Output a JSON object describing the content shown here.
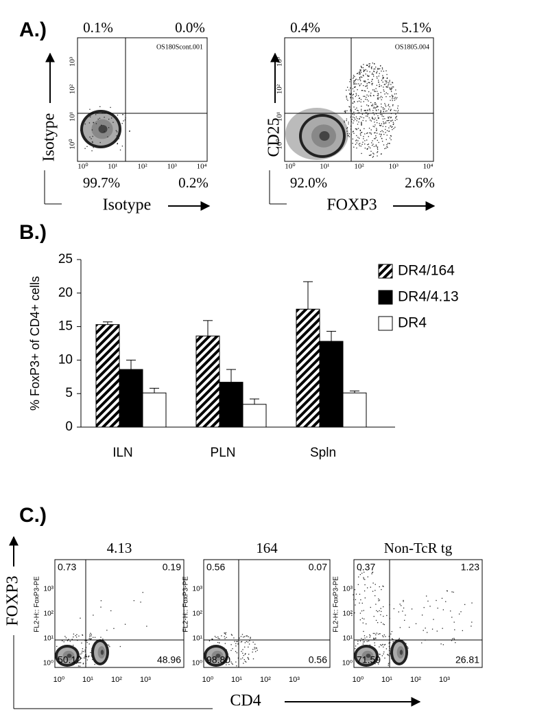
{
  "panel_a": {
    "label": "A.)",
    "x_ticks": [
      "10⁰",
      "10¹",
      "10²",
      "10³",
      "10⁴"
    ],
    "y_ticks": [
      "10⁰",
      "10¹",
      "10²",
      "10³"
    ],
    "plots": [
      {
        "file": "OS180Scont.001",
        "y_label": "Isotype",
        "x_label": "Isotype",
        "quadrants": {
          "upper_left": "0.1%",
          "upper_right": "0.0%",
          "lower_left": "99.7%",
          "lower_right": "0.2%"
        }
      },
      {
        "file": "OS1805.004",
        "y_label": "CD25",
        "x_label": "FOXP3",
        "quadrants": {
          "upper_left": "0.4%",
          "upper_right": "5.1%",
          "lower_left": "92.0%",
          "lower_right": "2.6%"
        }
      }
    ]
  },
  "chart_data": {
    "type": "bar",
    "panel_label": "B.)",
    "y_label": "% FoxP3+ of CD4+ cells",
    "categories": [
      "ILN",
      "PLN",
      "Spln"
    ],
    "series": [
      {
        "name": "DR4/164",
        "color": "#000000",
        "pattern": "hatch",
        "values": [
          15.3,
          13.6,
          17.6
        ],
        "errors": [
          0.4,
          2.3,
          4.1
        ]
      },
      {
        "name": "DR4/4.13",
        "color": "#000000",
        "values": [
          8.6,
          6.7,
          12.8
        ],
        "errors": [
          1.4,
          1.9,
          1.5
        ]
      },
      {
        "name": "DR4",
        "color": "#ffffff",
        "values": [
          5.1,
          3.4,
          5.1
        ],
        "errors": [
          0.7,
          0.8,
          0.3
        ]
      }
    ],
    "ylim": [
      0,
      25
    ],
    "yticks": [
      0,
      5,
      10,
      15,
      20,
      25
    ],
    "legend": "upper right"
  },
  "panel_c": {
    "label": "C.)",
    "y_label": "FOXP3",
    "x_label": "CD4",
    "axis_name": "FL2-H:: FoxP3-PE",
    "x_ticks": [
      "10⁰",
      "10¹",
      "10²",
      "10³"
    ],
    "y_ticks": [
      "10⁰",
      "10¹",
      "10²",
      "10³"
    ],
    "plots": [
      {
        "title": "4.13",
        "quadrants": {
          "upper_left": "0.73",
          "upper_right": "0.19",
          "lower_left": "50.12",
          "lower_right": "48.96"
        }
      },
      {
        "title": "164",
        "quadrants": {
          "upper_left": "0.56",
          "upper_right": "0.07",
          "lower_left": "98.80",
          "lower_right": "0.56"
        }
      },
      {
        "title": "Non-TcR tg",
        "quadrants": {
          "upper_left": "0.37",
          "upper_right": "1.23",
          "lower_left": "71.59",
          "lower_right": "26.81"
        }
      }
    ]
  }
}
